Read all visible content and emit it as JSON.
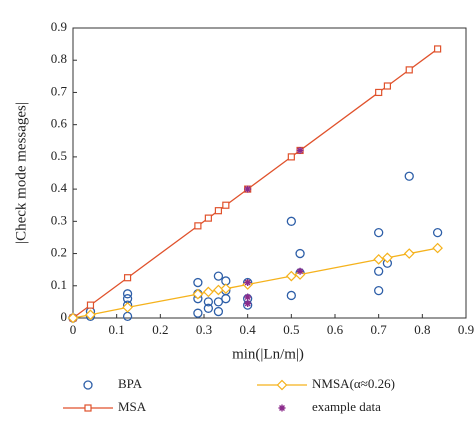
{
  "chart_data": {
    "type": "line",
    "x_label": "min(|Ln/m|)",
    "y_label": "|Check mode messages|",
    "xlim": [
      0,
      0.9
    ],
    "ylim": [
      0,
      0.9
    ],
    "xticks": [
      0,
      0.1,
      0.2,
      0.3,
      0.4,
      0.5,
      0.6,
      0.7,
      0.8,
      0.9
    ],
    "yticks": [
      0,
      0.1,
      0.2,
      0.3,
      0.4,
      0.5,
      0.6,
      0.7,
      0.8,
      0.9
    ],
    "grid": false,
    "legend": "bottom",
    "series": [
      {
        "name": "BPA",
        "color": "#2e5fa8",
        "marker": "circle",
        "line": false,
        "x": [
          0,
          0.04,
          0.04,
          0.125,
          0.125,
          0.125,
          0.125,
          0.286,
          0.286,
          0.286,
          0.286,
          0.31,
          0.31,
          0.333,
          0.333,
          0.333,
          0.35,
          0.35,
          0.35,
          0.4,
          0.4,
          0.4,
          0.5,
          0.5,
          0.52,
          0.52,
          0.7,
          0.7,
          0.7,
          0.72,
          0.77,
          0.835
        ],
        "values": [
          0,
          0.005,
          0.02,
          0.005,
          0.04,
          0.06,
          0.075,
          0.015,
          0.06,
          0.075,
          0.11,
          0.03,
          0.05,
          0.02,
          0.05,
          0.13,
          0.06,
          0.085,
          0.115,
          0.04,
          0.06,
          0.11,
          0.07,
          0.3,
          0.2,
          0.14,
          0.085,
          0.145,
          0.265,
          0.17,
          0.44,
          0.265
        ]
      },
      {
        "name": "MSA",
        "color": "#e0522c",
        "marker": "square",
        "line": true,
        "x": [
          0,
          0.04,
          0.125,
          0.286,
          0.31,
          0.333,
          0.35,
          0.4,
          0.5,
          0.52,
          0.7,
          0.72,
          0.77,
          0.835
        ],
        "values": [
          0,
          0.04,
          0.125,
          0.286,
          0.31,
          0.333,
          0.35,
          0.4,
          0.5,
          0.52,
          0.7,
          0.72,
          0.77,
          0.835
        ]
      },
      {
        "name": "NMSA(α≈0.26)",
        "color": "#f5b21c",
        "marker": "diamond",
        "line": true,
        "x": [
          0,
          0.04,
          0.125,
          0.286,
          0.31,
          0.333,
          0.35,
          0.4,
          0.5,
          0.52,
          0.7,
          0.72,
          0.77,
          0.835
        ],
        "values": [
          0,
          0.01,
          0.033,
          0.074,
          0.081,
          0.087,
          0.091,
          0.104,
          0.13,
          0.135,
          0.182,
          0.187,
          0.2,
          0.217
        ]
      },
      {
        "name": "example data",
        "color": "#8b2b8b",
        "marker": "star",
        "line": false,
        "x": [
          0.4,
          0.52,
          0.4,
          0.4,
          0.4,
          0.52
        ],
        "values": [
          0.4,
          0.52,
          0.045,
          0.065,
          0.11,
          0.145
        ]
      }
    ]
  }
}
